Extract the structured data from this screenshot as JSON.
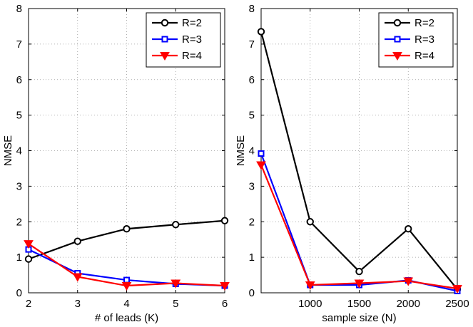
{
  "chart_data": [
    {
      "type": "line",
      "title": "",
      "xlabel": "# of leads (K)",
      "ylabel": "NMSE",
      "xlim": [
        2,
        6
      ],
      "ylim": [
        0,
        8
      ],
      "xticks": [
        2,
        3,
        4,
        5,
        6
      ],
      "yticks": [
        0,
        1,
        2,
        3,
        4,
        5,
        6,
        7,
        8
      ],
      "grid": true,
      "legend_position": "top-right",
      "x": [
        2,
        3,
        4,
        5,
        6
      ],
      "series": [
        {
          "name": "R=2",
          "values": [
            0.95,
            1.45,
            1.8,
            1.92,
            2.03
          ],
          "color": "#000000",
          "marker": "circle"
        },
        {
          "name": "R=3",
          "values": [
            1.22,
            0.55,
            0.36,
            0.25,
            0.2
          ],
          "color": "#0000ff",
          "marker": "square"
        },
        {
          "name": "R=4",
          "values": [
            1.38,
            0.45,
            0.2,
            0.27,
            0.2
          ],
          "color": "#ff0000",
          "marker": "triangle-down"
        }
      ]
    },
    {
      "type": "line",
      "title": "",
      "xlabel": "sample size (N)",
      "ylabel": "NMSE",
      "xlim": [
        500,
        2500
      ],
      "ylim": [
        0,
        8
      ],
      "xticks": [
        1000,
        1500,
        2000,
        2500
      ],
      "yticks": [
        0,
        1,
        2,
        3,
        4,
        5,
        6,
        7,
        8
      ],
      "grid": true,
      "legend_position": "top-right",
      "x": [
        500,
        1000,
        1500,
        2000,
        2500
      ],
      "series": [
        {
          "name": "R=2",
          "values": [
            7.35,
            2.0,
            0.6,
            1.8,
            0.1
          ],
          "color": "#000000",
          "marker": "circle"
        },
        {
          "name": "R=3",
          "values": [
            3.92,
            0.22,
            0.22,
            0.35,
            0.05
          ],
          "color": "#0000ff",
          "marker": "square"
        },
        {
          "name": "R=4",
          "values": [
            3.6,
            0.22,
            0.27,
            0.33,
            0.12
          ],
          "color": "#ff0000",
          "marker": "triangle-down"
        }
      ]
    }
  ]
}
